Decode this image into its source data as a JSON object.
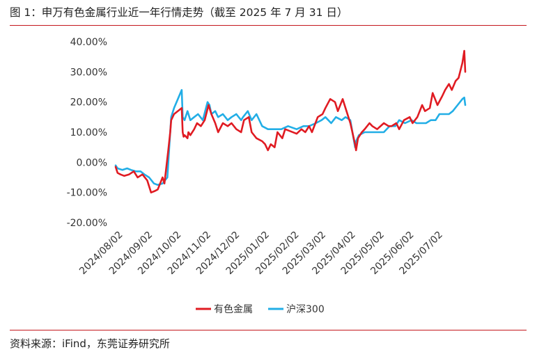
{
  "title": "图 1：申万有色金属行业近一年行情走势（截至 2025 年 7 月 31 日）",
  "source": "资料来源：iFind，东莞证券研究所",
  "colors": {
    "rule": "#c4161c",
    "nonferrous": "#e01b22",
    "csi300": "#22aee6"
  },
  "chart_data": {
    "type": "line",
    "ylim": [
      -20,
      40
    ],
    "yticks": [
      40,
      30,
      20,
      10,
      0,
      -10,
      -20
    ],
    "ytick_labels": [
      "40.00%",
      "30.00%",
      "20.00%",
      "10.00%",
      "0.00%",
      "-10.00%",
      "-20.00%"
    ],
    "grid": false,
    "legend_position": "bottom-center",
    "x_range": [
      "2024-07-31",
      "2025-07-31"
    ],
    "xtick_labels": [
      "2024/08/02",
      "2024/09/02",
      "2024/10/02",
      "2024/11/02",
      "2024/12/02",
      "2025/01/02",
      "2025/02/02",
      "2025/03/02",
      "2025/04/02",
      "2025/05/02",
      "2025/06/02",
      "2025/07/02"
    ],
    "series": [
      {
        "name": "有色金属",
        "color": "#e01b22",
        "x": [
          "2024-07-31",
          "2024-08-02",
          "2024-08-05",
          "2024-08-09",
          "2024-08-14",
          "2024-08-19",
          "2024-08-23",
          "2024-08-28",
          "2024-09-02",
          "2024-09-06",
          "2024-09-10",
          "2024-09-13",
          "2024-09-18",
          "2024-09-20",
          "2024-09-24",
          "2024-09-26",
          "2024-09-27",
          "2024-09-30",
          "2024-10-08",
          "2024-10-09",
          "2024-10-10",
          "2024-10-11",
          "2024-10-14",
          "2024-10-15",
          "2024-10-17",
          "2024-10-21",
          "2024-10-24",
          "2024-10-28",
          "2024-11-01",
          "2024-11-05",
          "2024-11-08",
          "2024-11-12",
          "2024-11-15",
          "2024-11-20",
          "2024-11-25",
          "2024-11-29",
          "2024-12-04",
          "2024-12-09",
          "2024-12-12",
          "2024-12-17",
          "2024-12-20",
          "2024-12-25",
          "2024-12-31",
          "2025-01-03",
          "2025-01-06",
          "2025-01-09",
          "2025-01-13",
          "2025-01-16",
          "2025-01-21",
          "2025-01-24",
          "2025-02-05",
          "2025-02-10",
          "2025-02-14",
          "2025-02-18",
          "2025-02-21",
          "2025-02-27",
          "2025-03-04",
          "2025-03-07",
          "2025-03-12",
          "2025-03-17",
          "2025-03-20",
          "2025-03-25",
          "2025-03-28",
          "2025-04-02",
          "2025-04-07",
          "2025-04-08",
          "2025-04-10",
          "2025-04-14",
          "2025-04-17",
          "2025-04-22",
          "2025-04-25",
          "2025-04-30",
          "2025-05-07",
          "2025-05-12",
          "2025-05-15",
          "2025-05-20",
          "2025-05-23",
          "2025-05-28",
          "2025-06-03",
          "2025-06-06",
          "2025-06-11",
          "2025-06-16",
          "2025-06-19",
          "2025-06-24",
          "2025-06-27",
          "2025-07-02",
          "2025-07-07",
          "2025-07-10",
          "2025-07-14",
          "2025-07-17",
          "2025-07-21",
          "2025-07-24",
          "2025-07-28",
          "2025-07-30",
          "2025-07-31"
        ],
        "y": [
          -1.5,
          -3.5,
          -4,
          -4.5,
          -4,
          -3,
          -5,
          -4,
          -6,
          -10,
          -9.5,
          -9,
          -5,
          -7,
          4,
          10,
          14,
          16,
          18,
          10,
          8.5,
          9,
          8,
          10,
          9,
          11,
          13,
          12,
          14,
          19,
          16,
          13,
          10,
          13,
          12,
          13,
          11,
          10,
          14,
          15,
          10,
          8,
          7,
          6,
          4,
          6,
          5,
          10,
          8,
          11,
          9.5,
          11,
          10,
          12,
          10,
          15,
          16,
          18,
          21,
          20,
          17,
          21,
          18,
          13,
          6,
          4,
          8,
          10,
          11,
          13,
          12,
          11,
          13,
          12,
          12,
          13,
          11,
          14,
          15,
          13,
          15,
          19,
          17,
          18,
          23,
          19,
          22,
          24,
          26,
          24,
          27,
          28,
          33,
          37,
          30
        ]
      },
      {
        "name": "沪深300",
        "color": "#22aee6",
        "x": [
          "2024-07-31",
          "2024-08-02",
          "2024-08-07",
          "2024-08-12",
          "2024-08-16",
          "2024-08-21",
          "2024-08-26",
          "2024-08-30",
          "2024-09-04",
          "2024-09-09",
          "2024-09-13",
          "2024-09-18",
          "2024-09-23",
          "2024-09-25",
          "2024-09-26",
          "2024-09-27",
          "2024-09-30",
          "2024-10-08",
          "2024-10-09",
          "2024-10-11",
          "2024-10-14",
          "2024-10-17",
          "2024-10-21",
          "2024-10-25",
          "2024-10-30",
          "2024-11-04",
          "2024-11-06",
          "2024-11-08",
          "2024-11-12",
          "2024-11-15",
          "2024-11-20",
          "2024-11-25",
          "2024-11-29",
          "2024-12-04",
          "2024-12-09",
          "2024-12-11",
          "2024-12-16",
          "2024-12-20",
          "2024-12-25",
          "2024-12-31",
          "2025-01-06",
          "2025-01-10",
          "2025-01-14",
          "2025-01-20",
          "2025-01-27",
          "2025-02-05",
          "2025-02-12",
          "2025-02-18",
          "2025-02-25",
          "2025-03-03",
          "2025-03-07",
          "2025-03-13",
          "2025-03-18",
          "2025-03-24",
          "2025-03-28",
          "2025-04-02",
          "2025-04-07",
          "2025-04-08",
          "2025-04-11",
          "2025-04-17",
          "2025-04-23",
          "2025-04-30",
          "2025-05-07",
          "2025-05-13",
          "2025-05-19",
          "2025-05-23",
          "2025-05-29",
          "2025-06-05",
          "2025-06-10",
          "2025-06-16",
          "2025-06-20",
          "2025-06-25",
          "2025-06-30",
          "2025-07-04",
          "2025-07-09",
          "2025-07-14",
          "2025-07-18",
          "2025-07-23",
          "2025-07-28",
          "2025-07-30",
          "2025-07-31"
        ],
        "y": [
          -1,
          -2,
          -2.5,
          -2,
          -2.5,
          -3,
          -3,
          -4,
          -5,
          -7,
          -7.5,
          -7,
          -5,
          5,
          10,
          15,
          18,
          24,
          15,
          14,
          17,
          14,
          15,
          16,
          14,
          20,
          19,
          16,
          17,
          15,
          16,
          14,
          15,
          16,
          14,
          15,
          17,
          14,
          16,
          12,
          11,
          11,
          11,
          11,
          12,
          11,
          12,
          12,
          13,
          14,
          15,
          13,
          15,
          14,
          15,
          14,
          5,
          7,
          9,
          10,
          10,
          10,
          10,
          12,
          12,
          14,
          13,
          14,
          13,
          13,
          13,
          14,
          14,
          16,
          16,
          16,
          17,
          19,
          21,
          21.5,
          19
        ]
      }
    ]
  }
}
